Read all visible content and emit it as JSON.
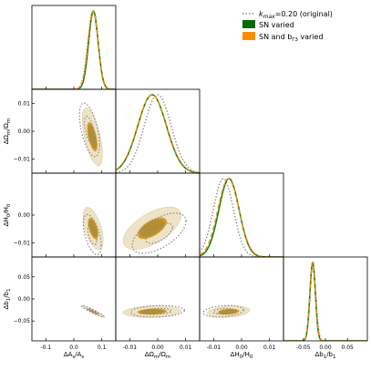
{
  "legend": {
    "placement": "top-right",
    "entries": [
      {
        "label": "k_max=0.20 (original)",
        "style": "dotted",
        "color": "#888888"
      },
      {
        "label": "SN varied",
        "style": "fill",
        "color": "#0a6a06"
      },
      {
        "label": "SN and b_Γ3 varied",
        "style": "fill",
        "color": "#ff8c00"
      }
    ],
    "text": {
      "k_label_prefix": "k",
      "k_label_sub": "max",
      "k_label_rest": "=0.20 (original)",
      "sn_label": "SN varied",
      "snb_label_prefix": "SN and b",
      "snb_label_sub": "Γ3",
      "snb_label_rest": " varied"
    }
  },
  "colors": {
    "original": "#888888",
    "sn_line": "#1a7a10",
    "snb_line": "#ff8c00",
    "contour_outer": "#ede3c6",
    "contour_inner": "#caa13e",
    "contour_core": "#b58f2f"
  },
  "axis_labels": {
    "As": "ΔA_s/A_s",
    "Om": "ΔΩ_m/Ω_m",
    "H0": "ΔH_0/H_0",
    "b1": "Δb_1/b_1"
  },
  "axis_label_text": {
    "As": {
      "pre": "ΔA",
      "sub": "s",
      "mid": "/A",
      "sub2": "s"
    },
    "Om": {
      "pre": "ΔΩ",
      "sub": "m",
      "mid": "/Ω",
      "sub2": "m"
    },
    "H0": {
      "pre": "ΔH",
      "sub": "0",
      "mid": "/H",
      "sub2": "0"
    },
    "b1": {
      "pre": "Δb",
      "sub": "1",
      "mid": "/b",
      "sub2": "1"
    }
  },
  "chart_data": {
    "type": "corner",
    "parameters": [
      "As",
      "Om",
      "H0",
      "b1"
    ],
    "ranges": {
      "As": [
        -0.15,
        0.15
      ],
      "Om": [
        -0.015,
        0.015
      ],
      "H0": [
        -0.015,
        0.015
      ],
      "b1": [
        -0.095,
        0.095
      ]
    },
    "x_ticks": {
      "As": {
        "values": [
          -0.1,
          0.0,
          0.1
        ],
        "labels": [
          "-0.1",
          "0.0",
          "0.1"
        ]
      },
      "Om": {
        "values": [
          -0.01,
          0.0,
          0.01
        ],
        "labels": [
          "-0.01",
          "0.00",
          "0.01"
        ]
      },
      "H0": {
        "values": [
          -0.01,
          0.0,
          0.01
        ],
        "labels": [
          "-0.01",
          "0.00",
          "0.01"
        ]
      },
      "b1": {
        "values": [
          -0.05,
          0.0,
          0.05
        ],
        "labels": [
          "-0.05",
          "0.00",
          "0.05"
        ]
      }
    },
    "y_ticks": {
      "Om": {
        "values": [
          -0.01,
          0.0,
          0.01
        ],
        "labels": [
          "−0.01",
          "0.00",
          "0.01"
        ]
      },
      "H0": {
        "values": [
          -0.01,
          0.0
        ],
        "labels": [
          "−0.01",
          "0.00"
        ]
      },
      "b1": {
        "values": [
          -0.05,
          0.0,
          0.05
        ],
        "labels": [
          "−0.05",
          "0.00",
          "0.05"
        ]
      }
    },
    "marginals": {
      "As": {
        "original": {
          "mean": 0.068,
          "sigma": 0.018
        },
        "sn_varied": {
          "mean": 0.07,
          "sigma": 0.017
        },
        "sn_bgamma3_varied": {
          "mean": 0.069,
          "sigma": 0.018
        }
      },
      "Om": {
        "original": {
          "mean": 0.0,
          "sigma": 0.0048
        },
        "sn_varied": {
          "mean": -0.002,
          "sigma": 0.0051
        },
        "sn_bgamma3_varied": {
          "mean": -0.002,
          "sigma": 0.0052
        }
      },
      "H0": {
        "original": {
          "mean": -0.0065,
          "sigma": 0.0036
        },
        "sn_varied": {
          "mean": -0.0045,
          "sigma": 0.0036
        },
        "sn_bgamma3_varied": {
          "mean": -0.0047,
          "sigma": 0.0038
        }
      },
      "b1": {
        "original": {
          "mean": -0.028,
          "sigma": 0.0065
        },
        "sn_varied": {
          "mean": -0.029,
          "sigma": 0.0062
        },
        "sn_bgamma3_varied": {
          "mean": -0.029,
          "sigma": 0.0065
        }
      }
    },
    "contours": [
      {
        "x": "As",
        "y": "Om",
        "original": {
          "cx": 0.056,
          "cy": 0.0005,
          "sx": 0.018,
          "sy": 0.0048,
          "rho": -0.55
        },
        "varied": {
          "cx": 0.066,
          "cy": -0.002,
          "sx": 0.018,
          "sy": 0.0052,
          "rho": -0.6
        }
      },
      {
        "x": "As",
        "y": "H0",
        "original": {
          "cx": 0.066,
          "cy": -0.007,
          "sx": 0.016,
          "sy": 0.0036,
          "rho": -0.55
        },
        "varied": {
          "cx": 0.069,
          "cy": -0.0048,
          "sx": 0.018,
          "sy": 0.0038,
          "rho": -0.55
        }
      },
      {
        "x": "As",
        "y": "b1",
        "original": {
          "cx": 0.068,
          "cy": -0.028,
          "sx": 0.02,
          "sy": 0.0065,
          "rho": -0.95
        },
        "varied": {
          "cx": 0.07,
          "cy": -0.029,
          "sx": 0.02,
          "sy": 0.0065,
          "rho": -0.95
        }
      },
      {
        "x": "Om",
        "y": "H0",
        "original": {
          "cx": 0.0005,
          "cy": -0.0065,
          "sx": 0.0048,
          "sy": 0.0036,
          "rho": 0.6
        },
        "varied": {
          "cx": -0.002,
          "cy": -0.0047,
          "sx": 0.0052,
          "sy": 0.0038,
          "rho": 0.6
        }
      },
      {
        "x": "Om",
        "y": "b1",
        "original": {
          "cx": 0.0,
          "cy": -0.028,
          "sx": 0.0048,
          "sy": 0.0065,
          "rho": 0.15
        },
        "varied": {
          "cx": -0.002,
          "cy": -0.029,
          "sx": 0.0052,
          "sy": 0.0065,
          "rho": 0.15
        }
      },
      {
        "x": "H0",
        "y": "b1",
        "original": {
          "cx": -0.0065,
          "cy": -0.028,
          "sx": 0.0036,
          "sy": 0.0065,
          "rho": 0.25
        },
        "varied": {
          "cx": -0.0047,
          "cy": -0.029,
          "sx": 0.0038,
          "sy": 0.0065,
          "rho": 0.25
        }
      }
    ],
    "sigma_levels": [
      1,
      2
    ]
  }
}
